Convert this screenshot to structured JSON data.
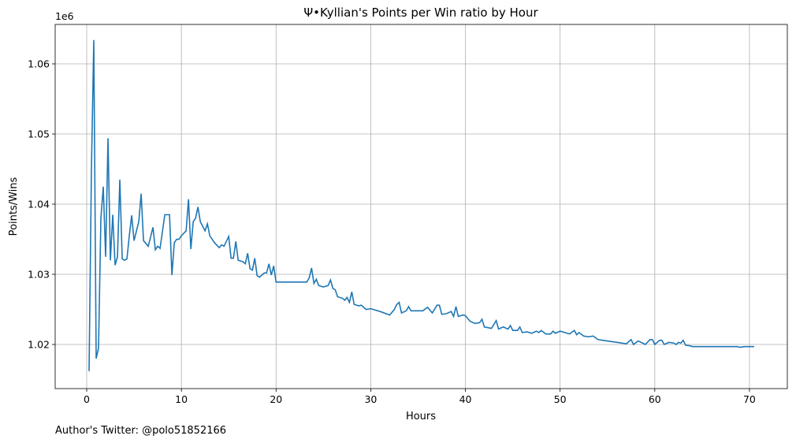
{
  "chart_data": {
    "type": "line",
    "title": "Ψ•Kyllian's Points per Win ratio by Hour",
    "x_label": "Hours",
    "y_label": "Points/Wins",
    "y_offset_label": "1e6",
    "footer": "Author's Twitter: @polo51852166",
    "xlim": [
      -3.33,
      74.0
    ],
    "ylim": [
      1.01371,
      1.06562
    ],
    "xticks": [
      0,
      10,
      20,
      30,
      40,
      50,
      60,
      70
    ],
    "yticks": [
      1.02,
      1.03,
      1.04,
      1.05,
      1.06
    ],
    "grid": true,
    "series": [
      {
        "name": "Points/Wins",
        "color": "#1f77b4",
        "x": [
          0.25,
          0.5,
          0.75,
          1.0,
          1.25,
          1.5,
          1.75,
          2.0,
          2.25,
          2.5,
          2.75,
          3.0,
          3.25,
          3.5,
          3.75,
          4.0,
          4.25,
          4.5,
          4.75,
          5.0,
          5.5,
          5.75,
          6.0,
          6.5,
          7.0,
          7.25,
          7.5,
          7.75,
          8.25,
          8.75,
          9.0,
          9.25,
          9.5,
          9.75,
          10.0,
          10.5,
          10.75,
          11.0,
          11.25,
          11.5,
          11.75,
          12.0,
          12.5,
          12.75,
          13.0,
          13.5,
          14.0,
          14.25,
          14.5,
          15.0,
          15.25,
          15.5,
          15.75,
          16.0,
          16.5,
          16.75,
          17.0,
          17.25,
          17.5,
          17.75,
          18.0,
          18.25,
          18.75,
          19.0,
          19.25,
          19.5,
          19.75,
          20.0,
          23.25,
          23.5,
          23.75,
          24.0,
          24.25,
          24.5,
          25.0,
          25.5,
          25.75,
          26.0,
          26.25,
          26.5,
          27.0,
          27.25,
          27.5,
          27.75,
          28.0,
          28.25,
          28.75,
          29.0,
          29.5,
          30.0,
          31.0,
          32.0,
          32.5,
          32.75,
          33.0,
          33.25,
          33.75,
          34.0,
          34.25,
          35.5,
          36.0,
          36.5,
          37.0,
          37.25,
          37.5,
          38.0,
          38.5,
          38.75,
          39.0,
          39.25,
          39.75,
          40.0,
          40.5,
          41.0,
          41.5,
          41.75,
          42.0,
          42.75,
          43.25,
          43.5,
          44.0,
          44.5,
          44.75,
          45.0,
          45.5,
          45.75,
          46.0,
          46.5,
          47.0,
          47.5,
          47.75,
          48.0,
          48.5,
          49.0,
          49.25,
          49.5,
          50.0,
          51.0,
          51.5,
          51.75,
          52.0,
          52.5,
          53.0,
          53.5,
          54.0,
          54.5,
          55.0,
          55.5,
          56.0,
          57.0,
          57.5,
          57.75,
          58.25,
          59.0,
          59.5,
          59.75,
          60.0,
          60.5,
          60.75,
          61.0,
          61.5,
          62.0,
          62.25,
          62.5,
          62.75,
          63.0,
          63.25,
          63.75,
          64.0,
          68.75,
          69.0,
          69.5,
          70.5
        ],
        "values": [
          1.0162,
          1.045,
          1.0634,
          1.018,
          1.0195,
          1.038,
          1.0425,
          1.0325,
          1.0494,
          1.032,
          1.0385,
          1.0313,
          1.0325,
          1.0435,
          1.0322,
          1.032,
          1.0322,
          1.0355,
          1.0384,
          1.0348,
          1.0375,
          1.0415,
          1.0348,
          1.034,
          1.0367,
          1.0335,
          1.034,
          1.0337,
          1.0385,
          1.0385,
          1.0299,
          1.0345,
          1.035,
          1.035,
          1.0355,
          1.0362,
          1.0407,
          1.0336,
          1.0375,
          1.038,
          1.0396,
          1.0375,
          1.0362,
          1.0372,
          1.0355,
          1.0345,
          1.0338,
          1.0342,
          1.034,
          1.0354,
          1.0323,
          1.0323,
          1.0347,
          1.032,
          1.0318,
          1.0315,
          1.033,
          1.0308,
          1.0306,
          1.0323,
          1.0298,
          1.0296,
          1.0302,
          1.0302,
          1.0315,
          1.0299,
          1.0312,
          1.0289,
          1.0289,
          1.0295,
          1.0309,
          1.0287,
          1.0293,
          1.0284,
          1.0282,
          1.0284,
          1.0292,
          1.028,
          1.0278,
          1.0268,
          1.0266,
          1.0263,
          1.0267,
          1.026,
          1.0275,
          1.0257,
          1.0255,
          1.0256,
          1.025,
          1.0251,
          1.0247,
          1.0242,
          1.025,
          1.0257,
          1.026,
          1.0245,
          1.0248,
          1.0254,
          1.0248,
          1.0248,
          1.0253,
          1.0245,
          1.0256,
          1.0256,
          1.0243,
          1.0244,
          1.0247,
          1.024,
          1.0254,
          1.024,
          1.0242,
          1.0241,
          1.0233,
          1.023,
          1.0231,
          1.0236,
          1.0225,
          1.0223,
          1.0234,
          1.0222,
          1.0225,
          1.0222,
          1.0227,
          1.022,
          1.022,
          1.0225,
          1.0217,
          1.0218,
          1.0216,
          1.0219,
          1.0217,
          1.022,
          1.0215,
          1.0215,
          1.0219,
          1.0216,
          1.0219,
          1.0215,
          1.022,
          1.0214,
          1.0217,
          1.0212,
          1.0211,
          1.0212,
          1.0207,
          1.0206,
          1.0205,
          1.0204,
          1.0203,
          1.0201,
          1.0207,
          1.02,
          1.0205,
          1.02,
          1.0207,
          1.0207,
          1.02,
          1.0206,
          1.0206,
          1.02,
          1.0203,
          1.0202,
          1.02,
          1.0203,
          1.0202,
          1.0206,
          1.0199,
          1.0198,
          1.0197,
          1.0197,
          1.0196,
          1.0197,
          1.0197
        ]
      }
    ]
  }
}
